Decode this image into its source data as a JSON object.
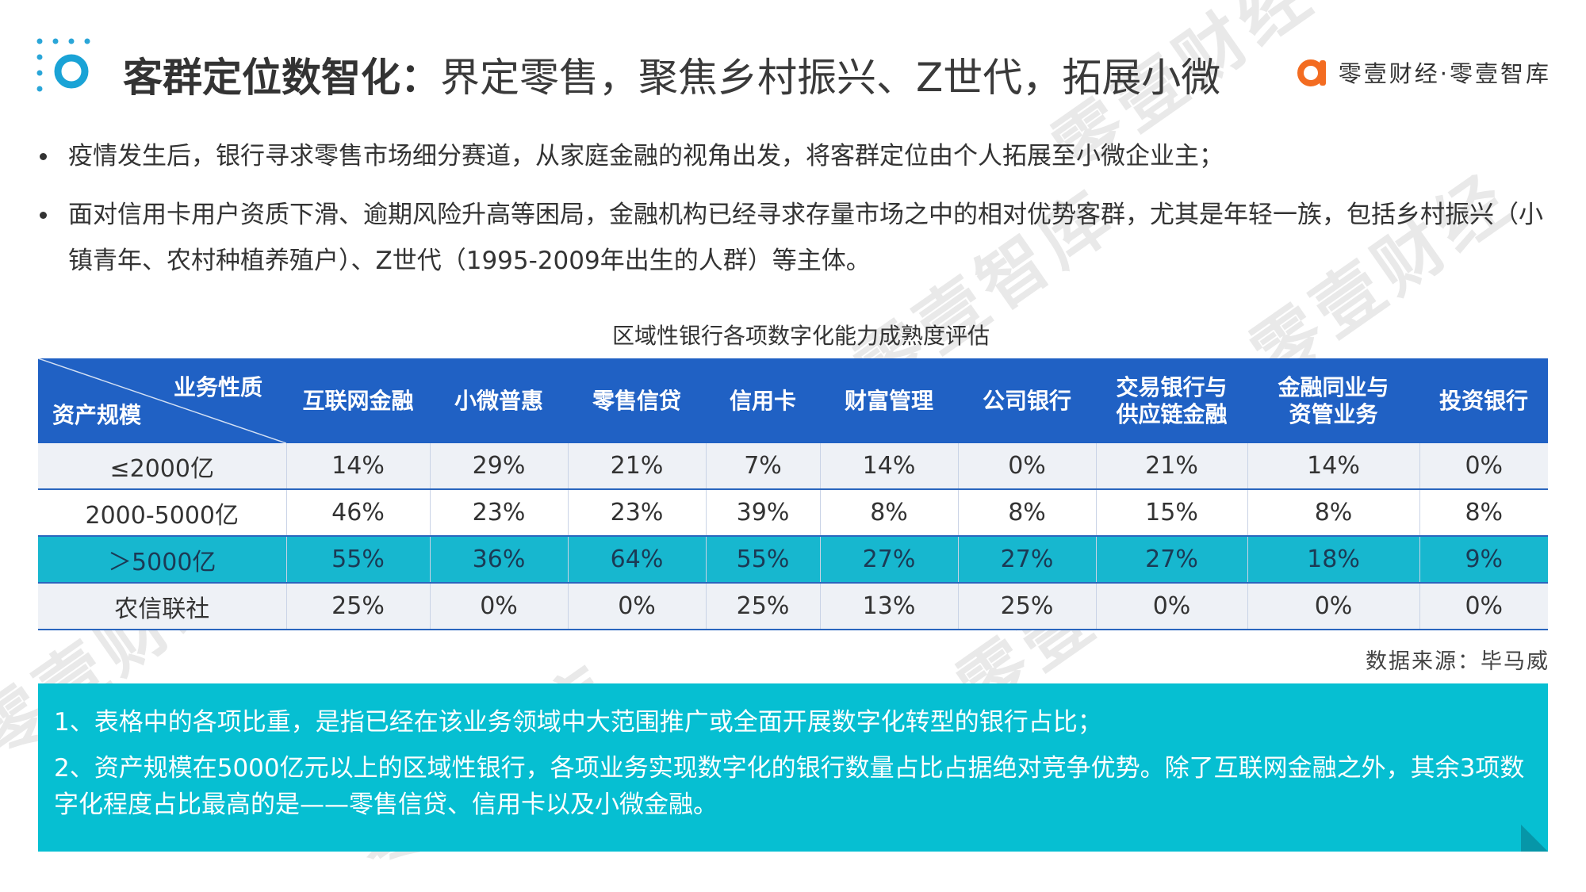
{
  "header": {
    "title_bold": "客群定位数智化：",
    "title_rest": "界定零售，聚焦乡村振兴、Z世代，拓展小微",
    "brand": "零壹财经·零壹智库",
    "watermark": "零壹财经"
  },
  "bullets": [
    "疫情发生后，银行寻求零售市场细分赛道，从家庭金融的视角出发，将客群定位由个人拓展至小微企业主；",
    "面对信用卡用户资质下滑、逾期风险升高等困局，金融机构已经寻求存量市场之中的相对优势客群，尤其是年轻一族，包括乡村振兴（小镇青年、农村种植养殖户）、Z世代（1995-2009年出生的人群）等主体。"
  ],
  "table": {
    "title": "区域性银行各项数字化能力成熟度评估",
    "corner_top": "业务性质",
    "corner_bottom": "资产规模",
    "columns": [
      "互联网金融",
      "小微普惠",
      "零售信贷",
      "信用卡",
      "财富管理",
      "公司银行",
      "交易银行与\n供应链金融",
      "金融同业与\n资管业务",
      "投资银行"
    ],
    "rows": [
      {
        "label": "≤2000亿",
        "values": [
          "14%",
          "29%",
          "21%",
          "7%",
          "14%",
          "0%",
          "21%",
          "14%",
          "0%"
        ]
      },
      {
        "label": "2000-5000亿",
        "values": [
          "46%",
          "23%",
          "23%",
          "39%",
          "8%",
          "8%",
          "15%",
          "8%",
          "8%"
        ]
      },
      {
        "label": "＞5000亿",
        "values": [
          "55%",
          "36%",
          "64%",
          "55%",
          "27%",
          "27%",
          "27%",
          "18%",
          "9%"
        ]
      },
      {
        "label": "农信联社",
        "values": [
          "25%",
          "0%",
          "0%",
          "25%",
          "13%",
          "25%",
          "0%",
          "0%",
          "0%"
        ]
      }
    ]
  },
  "source": "数据来源：毕马威",
  "notes": [
    "1、表格中的各项比重，是指已经在该业务领域中大范围推广或全面开展数字化转型的银行占比；",
    "2、资产规模在5000亿元以上的区域性银行，各项业务实现数字化的银行数量占比占据绝对竞争优势。除了互联网金融之外，其余3项数字化程度占比最高的是——零售信贷、信用卡以及小微金融。"
  ],
  "colors": {
    "header_blue": "#2061c4",
    "highlight_row": "#17b7cf",
    "note_bg": "#06bfd2",
    "brand_orange": "#f36c21"
  }
}
